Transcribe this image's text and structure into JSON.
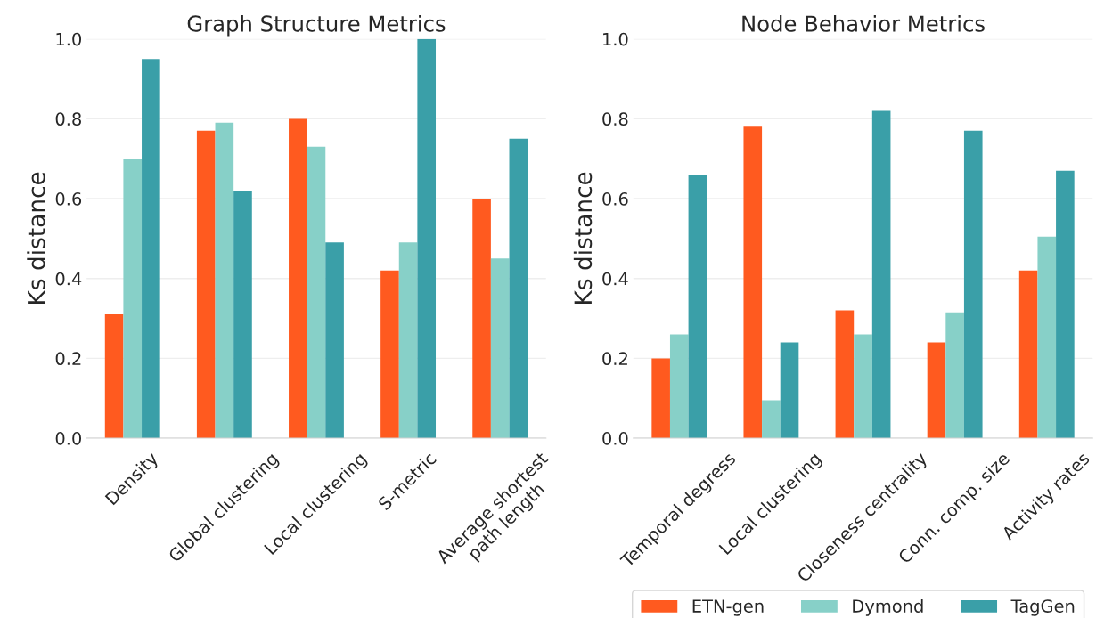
{
  "chart_data": [
    {
      "type": "bar",
      "title": "Graph Structure Metrics",
      "ylabel": "Ks distance",
      "categories": [
        "Density",
        "Global clustering",
        "Local clustering",
        "S-metric",
        "Average shortest\npath length"
      ],
      "series": [
        {
          "color": "#ff5a1f",
          "values": [
            0.31,
            0.77,
            0.8,
            0.42,
            0.6
          ]
        },
        {
          "color": "#87d0c8",
          "values": [
            0.7,
            0.79,
            0.73,
            0.49,
            0.45
          ]
        },
        {
          "color": "#3a9fa8",
          "values": [
            0.95,
            0.62,
            0.49,
            1.0,
            0.75
          ]
        }
      ],
      "ylim": [
        0,
        1.0
      ],
      "yticks": [
        {
          "value": 0,
          "label": "0.0"
        },
        {
          "value": 0.2,
          "label": "0.2"
        },
        {
          "value": 0.4,
          "label": "0.4"
        },
        {
          "value": 0.6,
          "label": "0.6"
        },
        {
          "value": 0.8,
          "label": "0.8"
        },
        {
          "value": 1.0,
          "label": "1.0"
        }
      ],
      "grid": "y"
    },
    {
      "type": "bar",
      "title": "Node Behavior Metrics",
      "ylabel": "Ks distance",
      "categories": [
        "Temporal degress",
        "Local clustering",
        "Closeness centrality",
        "Conn. comp. size",
        "Activity rates"
      ],
      "series": [
        {
          "name": "ETN-gen",
          "color": "#ff5a1f",
          "values": [
            0.2,
            0.78,
            0.32,
            0.24,
            0.42
          ]
        },
        {
          "name": "Dymond",
          "color": "#87d0c8",
          "values": [
            0.26,
            0.095,
            0.26,
            0.315,
            0.505
          ]
        },
        {
          "name": "TagGen",
          "color": "#3a9fa8",
          "values": [
            0.66,
            0.24,
            0.82,
            0.77,
            0.67
          ]
        }
      ],
      "ylim": [
        0,
        1.0
      ],
      "yticks": [
        {
          "value": 0,
          "label": "0.0"
        },
        {
          "value": 0.2,
          "label": "0.2"
        },
        {
          "value": 0.4,
          "label": "0.4"
        },
        {
          "value": 0.6,
          "label": "0.6"
        },
        {
          "value": 0.8,
          "label": "0.8"
        },
        {
          "value": 1.0,
          "label": "1.0"
        }
      ],
      "grid": "y",
      "legend": "bottom right"
    }
  ]
}
